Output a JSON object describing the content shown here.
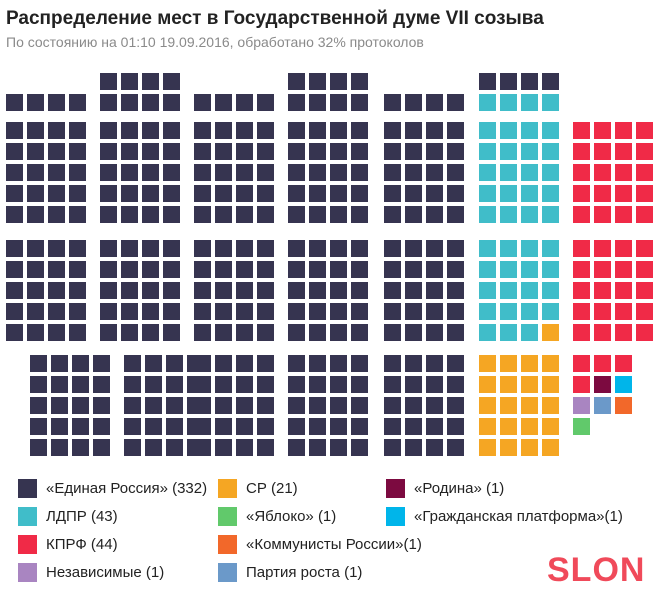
{
  "header": {
    "title": "Распределение мест в Государственной думе VII созыва",
    "subtitle": "По состоянию на 01:10 19.09.2016, обработано 32% протоколов"
  },
  "chart_data": {
    "type": "waffle",
    "title": "Распределение мест в Государственной думе VII созыва",
    "subtitle": "По состоянию на 01:10 19.09.2016, обработано 32% протоколов",
    "total_seats": 450,
    "series": [
      {
        "name": "«Единая Россия»",
        "seats": 332,
        "color": "#363450",
        "legend": "«Единая Россия» (332)"
      },
      {
        "name": "ЛДПР",
        "seats": 43,
        "color": "#40bdc9",
        "legend": "ЛДПР (43)"
      },
      {
        "name": "КПРФ",
        "seats": 44,
        "color": "#f02a47",
        "legend": "КПРФ (44)"
      },
      {
        "name": "Независимые",
        "seats": 1,
        "color": "#a985c1",
        "legend": "Независимые (1)"
      },
      {
        "name": "СР",
        "seats": 21,
        "color": "#f5a623",
        "legend": "СР (21)"
      },
      {
        "name": "«Яблоко»",
        "seats": 1,
        "color": "#61c96b",
        "legend": "«Яблоко» (1)"
      },
      {
        "name": "«Коммунисты России»",
        "seats": 1,
        "color": "#f2682a",
        "legend": "«Коммунисты России»(1)"
      },
      {
        "name": "Партия роста",
        "seats": 1,
        "color": "#6b99c9",
        "legend": "Партия роста (1)"
      },
      {
        "name": "«Родина»",
        "seats": 1,
        "color": "#7c0a40",
        "legend": "«Родина» (1)"
      },
      {
        "name": "«Гражданская платформа»",
        "seats": 1,
        "color": "#00b5ea",
        "legend": "«Гражданская платформа»(1)"
      }
    ],
    "undetermined_seats": 4,
    "undetermined_color": "#ffffff"
  },
  "branding": {
    "logo": "SLON"
  }
}
